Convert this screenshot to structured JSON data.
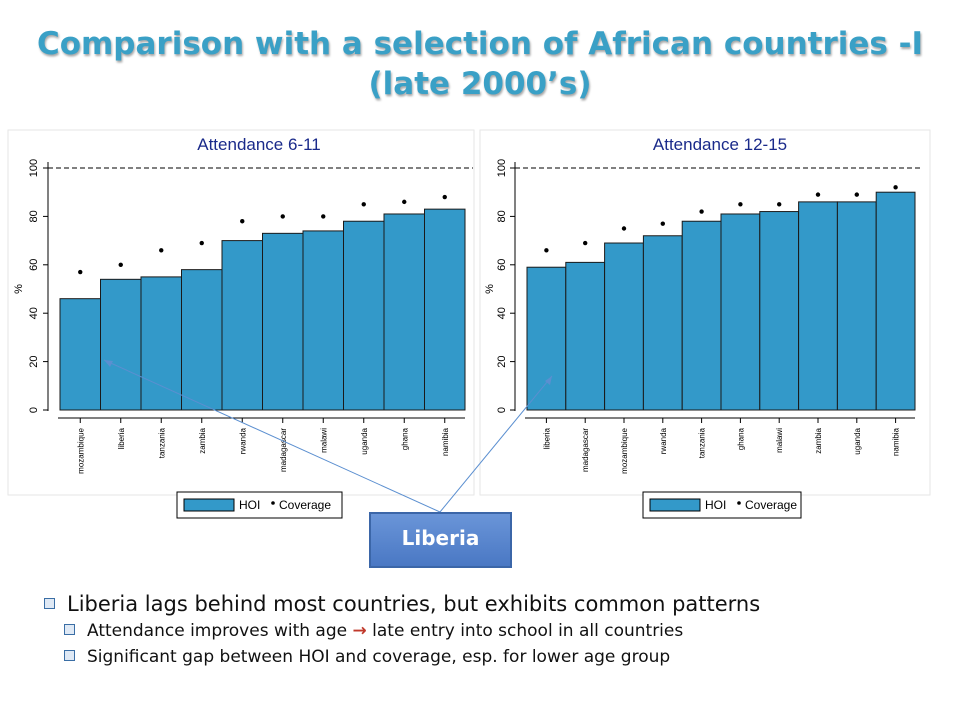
{
  "slide": {
    "title_line1": "Comparison with a selection of African countries -I",
    "title_line2": "(late 2000’s)",
    "callout": "Liberia",
    "bullet1": "Liberia lags behind most countries, but exhibits common patterns",
    "bullet2a": "Attendance improves with age ",
    "bullet2_arrow": "→",
    "bullet2b": " late entry into school in all countries",
    "bullet3": "Significant gap between HOI and coverage, esp. for lower age group"
  },
  "colors": {
    "bar": "#3399c9",
    "bar_stroke": "#1a1a1a",
    "title": "#3aa0c6",
    "chart_title": "#1a2a8a",
    "arrow": "#5b8fd0"
  },
  "chart_data": [
    {
      "type": "bar",
      "title": "Attendance 6-11",
      "ylabel": "%",
      "ylim": [
        0,
        100
      ],
      "yticks": [
        0,
        20,
        40,
        60,
        80,
        100
      ],
      "reference_line": 100,
      "categories": [
        "mozambique",
        "liberia",
        "tanzania",
        "zambia",
        "rwanda",
        "madagascar",
        "malawi",
        "uganda",
        "ghana",
        "namibia"
      ],
      "series": [
        {
          "name": "HOI",
          "values": [
            46,
            54,
            55,
            58,
            70,
            73,
            74,
            78,
            81,
            83
          ]
        },
        {
          "name": "Coverage",
          "values": [
            57,
            60,
            66,
            69,
            78,
            80,
            80,
            85,
            86,
            88
          ]
        }
      ],
      "legend": "bottom"
    },
    {
      "type": "bar",
      "title": "Attendance 12-15",
      "ylabel": "%",
      "ylim": [
        0,
        100
      ],
      "yticks": [
        0,
        20,
        40,
        60,
        80,
        100
      ],
      "reference_line": 100,
      "categories": [
        "liberia",
        "madagascar",
        "mozambique",
        "rwanda",
        "tanzania",
        "ghana",
        "malawi",
        "zambia",
        "uganda",
        "namibia"
      ],
      "series": [
        {
          "name": "HOI",
          "values": [
            59,
            61,
            69,
            72,
            78,
            81,
            82,
            86,
            86,
            90
          ]
        },
        {
          "name": "Coverage",
          "values": [
            66,
            69,
            75,
            77,
            82,
            85,
            85,
            89,
            89,
            92
          ]
        }
      ],
      "legend": "bottom"
    }
  ]
}
